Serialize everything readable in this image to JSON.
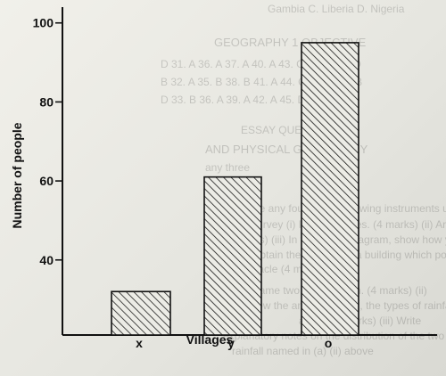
{
  "bleed_through_lines": [
    "Gambia C. Liberia D. Nigeria",
    "GEOGRAPHY 1 OBJECTIVE",
    "D  31. A  36. A  37. A  40. A  43. C  46. C  49. D",
    "B  32. A  35. B  38. B  41. A  44. C  47. C  50. B",
    "D  33. B  36. A  39. A  42. A  45. D  48. A",
    "ESSAY QUESTIONS",
    "AND PHYSICAL GEOGRAPHY",
    "any three",
    "Describe any four of the following instruments used",
    "chain survey (i) Ranging poles. (4 marks) (ii) Arrows",
    "(4 marks) (iii) In the space diagram, show how you",
    "would obtain the location of a building which poss",
    "an obstacle (4 marks)",
    "(a) (i) Name two types of rain. (4 marks) (ii)",
    "State how the amount of rain, the types of rainfall",
    "above (8 marks) (iii) Write",
    "explanatory notes on the distribution of the two types of",
    "rainfall named in (a) (ii) above"
  ],
  "chart_data": {
    "type": "bar",
    "title": "",
    "xlabel": "Villages",
    "ylabel": "Number of people",
    "categories": [
      "x",
      "y",
      "o"
    ],
    "values": [
      32,
      61,
      95
    ],
    "ylim": [
      21,
      104
    ],
    "yticks": [
      40,
      60,
      80,
      100
    ],
    "grid": false,
    "bar_fill": "diagonal-hatch",
    "colors": {
      "ink": "#111111",
      "hatch": "#1a1a1a"
    }
  }
}
